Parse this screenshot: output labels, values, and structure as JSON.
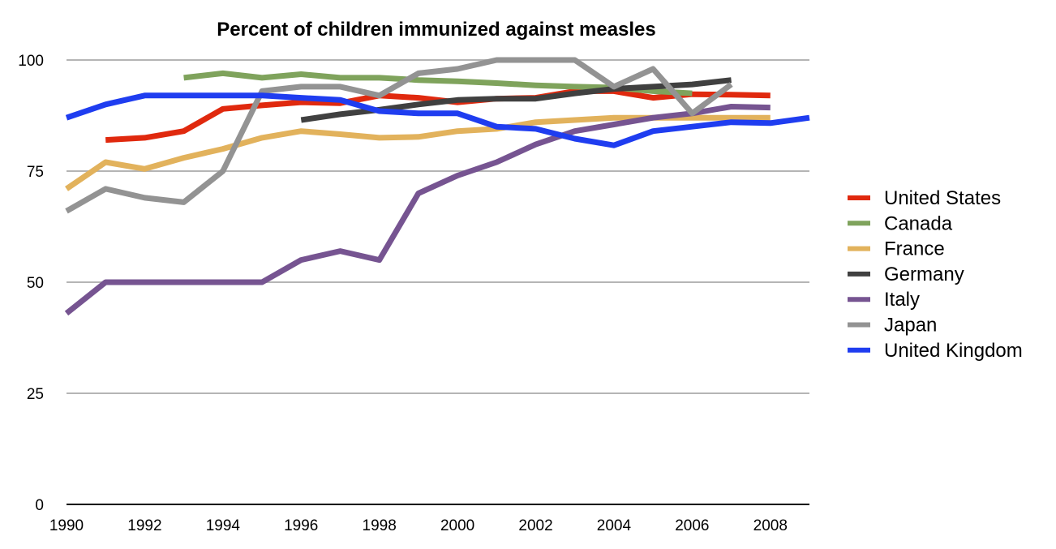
{
  "chart_data": {
    "type": "line",
    "title": "Percent of children immunized against measles",
    "xlabel": "",
    "ylabel": "",
    "x": [
      1990,
      1991,
      1992,
      1993,
      1994,
      1995,
      1996,
      1997,
      1998,
      1999,
      2000,
      2001,
      2002,
      2003,
      2004,
      2005,
      2006,
      2007,
      2008,
      2009
    ],
    "xlim": [
      1990,
      2009
    ],
    "ylim": [
      0,
      100
    ],
    "x_ticks": [
      "1990",
      "1992",
      "1994",
      "1996",
      "1998",
      "2000",
      "2002",
      "2004",
      "2006",
      "2008"
    ],
    "y_ticks": [
      "0",
      "25",
      "50",
      "75",
      "100"
    ],
    "grid": true,
    "legend_position": "right",
    "series": [
      {
        "name": "United States",
        "color": "#e0290e",
        "values": [
          null,
          82,
          82.5,
          84,
          89,
          89.8,
          90.5,
          90.3,
          92,
          91.5,
          90.5,
          91.3,
          91.5,
          93,
          93,
          91.5,
          92.3,
          92.2,
          92,
          null
        ]
      },
      {
        "name": "Canada",
        "color": "#7fa35c",
        "values": [
          null,
          null,
          null,
          96,
          97,
          96,
          96.8,
          96,
          96,
          95.5,
          95.2,
          94.8,
          94.3,
          94,
          93.8,
          93,
          92.5,
          null,
          null,
          null
        ]
      },
      {
        "name": "France",
        "color": "#e2b25c",
        "values": [
          71,
          77,
          75.5,
          78,
          80,
          82.5,
          84,
          83.3,
          82.5,
          82.7,
          84,
          84.5,
          86,
          86.5,
          87,
          87,
          87,
          87,
          87,
          null
        ]
      },
      {
        "name": "Germany",
        "color": "#404040",
        "values": [
          null,
          null,
          null,
          null,
          null,
          null,
          86.5,
          87.8,
          88.8,
          90,
          91,
          91.3,
          91.3,
          92.5,
          93.5,
          94,
          94.5,
          95.5,
          null,
          null
        ]
      },
      {
        "name": "Italy",
        "color": "#765491",
        "values": [
          43,
          50,
          50,
          50,
          50,
          50,
          55,
          57,
          55,
          70,
          74,
          77,
          81,
          84,
          85.5,
          87,
          88,
          89.5,
          89.3,
          null
        ]
      },
      {
        "name": "Japan",
        "color": "#939393",
        "values": [
          66,
          71,
          69,
          68,
          75,
          93,
          94,
          94,
          92,
          97,
          98,
          100,
          100,
          100,
          94,
          98,
          88,
          94.5,
          null,
          null
        ]
      },
      {
        "name": "United Kingdom",
        "color": "#1f3df0",
        "values": [
          87,
          90,
          92,
          92,
          92,
          92,
          91.5,
          91,
          88.5,
          88,
          88,
          85,
          84.5,
          82.3,
          80.8,
          84,
          85,
          86,
          85.8,
          87
        ]
      }
    ]
  }
}
